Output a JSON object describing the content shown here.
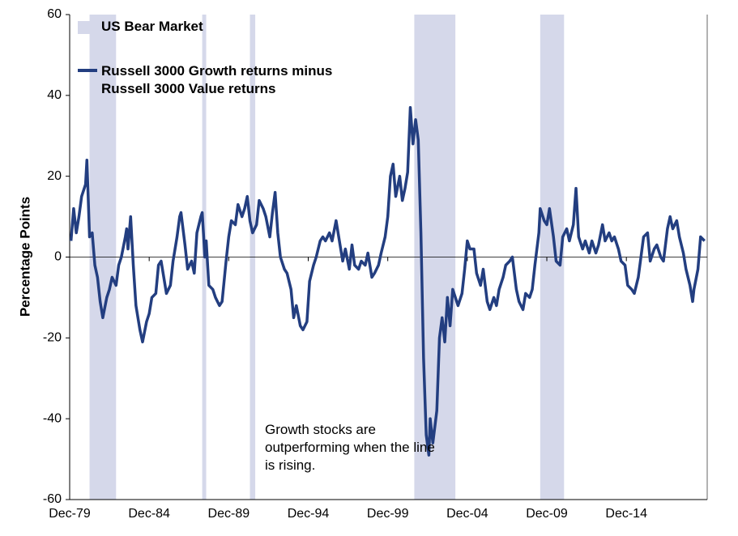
{
  "chart_data": {
    "type": "line",
    "ylabel": "Percentage Points",
    "annotation": "Growth stocks are outperforming when the line is rising.",
    "xlim": [
      "1979-12",
      "2020-01"
    ],
    "xticks": [
      {
        "value": "1979-12",
        "label": "Dec-79"
      },
      {
        "value": "1984-12",
        "label": "Dec-84"
      },
      {
        "value": "1989-12",
        "label": "Dec-89"
      },
      {
        "value": "1994-12",
        "label": "Dec-94"
      },
      {
        "value": "1999-12",
        "label": "Dec-99"
      },
      {
        "value": "2004-12",
        "label": "Dec-04"
      },
      {
        "value": "2009-12",
        "label": "Dec-09"
      },
      {
        "value": "2014-12",
        "label": "Dec-14"
      }
    ],
    "ylim": [
      -60,
      60
    ],
    "yticks": [
      -60,
      -40,
      -20,
      0,
      20,
      40,
      60
    ],
    "bear_markets": {
      "name": "US Bear Market",
      "color": "#d5d8ea",
      "periods": [
        [
          "1981-03",
          "1982-11"
        ],
        [
          "1988-04",
          "1988-07"
        ],
        [
          "1991-04",
          "1991-08"
        ],
        [
          "2001-08",
          "2004-03"
        ],
        [
          "2009-07",
          "2011-01"
        ]
      ]
    },
    "x": [
      "1980-01",
      "1980-03",
      "1980-05",
      "1980-07",
      "1980-09",
      "1980-12",
      "1981-01",
      "1981-03",
      "1981-05",
      "1981-07",
      "1981-09",
      "1981-11",
      "1982-01",
      "1982-04",
      "1982-06",
      "1982-08",
      "1982-11",
      "1983-01",
      "1983-03",
      "1983-06",
      "1983-07",
      "1983-08",
      "1983-10",
      "1983-12",
      "1984-02",
      "1984-05",
      "1984-07",
      "1984-10",
      "1984-12",
      "1985-02",
      "1985-05",
      "1985-07",
      "1985-09",
      "1985-12",
      "1986-01",
      "1986-04",
      "1986-06",
      "1986-09",
      "1986-11",
      "1986-12",
      "1987-03",
      "1987-05",
      "1987-08",
      "1987-10",
      "1987-12",
      "1988-03",
      "1988-04",
      "1988-06",
      "1988-07",
      "1988-09",
      "1988-12",
      "1989-02",
      "1989-05",
      "1989-07",
      "1989-10",
      "1989-12",
      "1990-02",
      "1990-05",
      "1990-07",
      "1990-10",
      "1990-12",
      "1991-02",
      "1991-04",
      "1991-06",
      "1991-09",
      "1991-11",
      "1992-02",
      "1992-04",
      "1992-07",
      "1992-09",
      "1992-11",
      "1993-01",
      "1993-03",
      "1993-06",
      "1993-08",
      "1993-11",
      "1994-01",
      "1994-03",
      "1994-06",
      "1994-08",
      "1994-11",
      "1995-01",
      "1995-04",
      "1995-06",
      "1995-09",
      "1995-11",
      "1996-01",
      "1996-04",
      "1996-06",
      "1996-09",
      "1996-11",
      "1997-02",
      "1997-04",
      "1997-07",
      "1997-09",
      "1997-11",
      "1998-02",
      "1998-04",
      "1998-07",
      "1998-09",
      "1998-12",
      "1999-02",
      "1999-05",
      "1999-07",
      "1999-10",
      "1999-12",
      "2000-02",
      "2000-04",
      "2000-06",
      "2000-09",
      "2000-11",
      "2001-01",
      "2001-03",
      "2001-05",
      "2001-07",
      "2001-09",
      "2001-11",
      "2002-01",
      "2002-03",
      "2002-05",
      "2002-07",
      "2002-08",
      "2002-10",
      "2003-01",
      "2003-03",
      "2003-05",
      "2003-07",
      "2003-09",
      "2003-11",
      "2004-01",
      "2004-03",
      "2004-05",
      "2004-08",
      "2004-10",
      "2004-12",
      "2005-02",
      "2005-05",
      "2005-07",
      "2005-10",
      "2005-12",
      "2006-03",
      "2006-05",
      "2006-08",
      "2006-10",
      "2006-12",
      "2007-03",
      "2007-05",
      "2007-08",
      "2007-10",
      "2008-01",
      "2008-03",
      "2008-06",
      "2008-08",
      "2008-11",
      "2009-01",
      "2009-03",
      "2009-06",
      "2009-07",
      "2009-10",
      "2009-12",
      "2010-02",
      "2010-05",
      "2010-07",
      "2010-10",
      "2010-12",
      "2011-03",
      "2011-05",
      "2011-08",
      "2011-10",
      "2011-12",
      "2012-03",
      "2012-05",
      "2012-08",
      "2012-10",
      "2013-01",
      "2013-03",
      "2013-06",
      "2013-08",
      "2013-11",
      "2014-01",
      "2014-03",
      "2014-06",
      "2014-08",
      "2014-11",
      "2015-01",
      "2015-04",
      "2015-06",
      "2015-09",
      "2015-11",
      "2016-01",
      "2016-04",
      "2016-06",
      "2016-09",
      "2016-11",
      "2017-02",
      "2017-04",
      "2017-07",
      "2017-09",
      "2017-11",
      "2018-02",
      "2018-04",
      "2018-07",
      "2018-09",
      "2018-12",
      "2019-02",
      "2019-03",
      "2019-06",
      "2019-08",
      "2019-11"
    ],
    "series": [
      {
        "name": "Russell 3000 Growth returns minus Russell 3000 Value returns",
        "color": "#233e80",
        "values": [
          4,
          12,
          6,
          10,
          15,
          18,
          24,
          5,
          6,
          -2,
          -5,
          -11,
          -15,
          -10,
          -8,
          -5,
          -7,
          -2,
          0,
          5,
          7,
          2,
          10,
          -2,
          -12,
          -18,
          -21,
          -16,
          -14,
          -10,
          -9,
          -2,
          -1,
          -7,
          -9,
          -7,
          -1,
          5,
          10,
          11,
          3,
          -3,
          -1,
          -4,
          6,
          10,
          11,
          0,
          4,
          -7,
          -8,
          -10,
          -12,
          -11,
          -1,
          5,
          9,
          8,
          13,
          10,
          12,
          15,
          9,
          6,
          8,
          14,
          12,
          10,
          5,
          11,
          16,
          6,
          0,
          -3,
          -4,
          -8,
          -15,
          -12,
          -17,
          -18,
          -16,
          -6,
          -2,
          0,
          4,
          5,
          4,
          6,
          4,
          9,
          5,
          -1,
          2,
          -3,
          3,
          -2,
          -3,
          -1,
          -2,
          1,
          -5,
          -4,
          -2,
          1,
          5,
          10,
          20,
          23,
          15,
          20,
          14,
          17,
          21,
          37,
          28,
          34,
          29,
          6,
          -25,
          -44,
          -49,
          -40,
          -46,
          -38,
          -20,
          -15,
          -21,
          -10,
          -17,
          -8,
          -10,
          -12,
          -9,
          -3,
          4,
          2,
          2,
          -4,
          -7,
          -3,
          -11,
          -13,
          -10,
          -12,
          -8,
          -5,
          -2,
          -1,
          0,
          -8,
          -11,
          -13,
          -9,
          -10,
          -8,
          -2,
          6,
          12,
          9,
          8,
          12,
          5,
          -1,
          -2,
          5,
          7,
          4,
          8,
          17,
          5,
          2,
          4,
          1,
          4,
          1,
          3,
          8,
          4,
          6,
          4,
          5,
          2,
          -1,
          -2,
          -7,
          -8,
          -9,
          -5,
          0,
          5,
          6,
          -1,
          2,
          3,
          0,
          -1,
          7,
          10,
          7,
          9,
          5,
          1,
          -3,
          -7,
          -11,
          -8,
          -3,
          5,
          4
        ]
      }
    ]
  }
}
